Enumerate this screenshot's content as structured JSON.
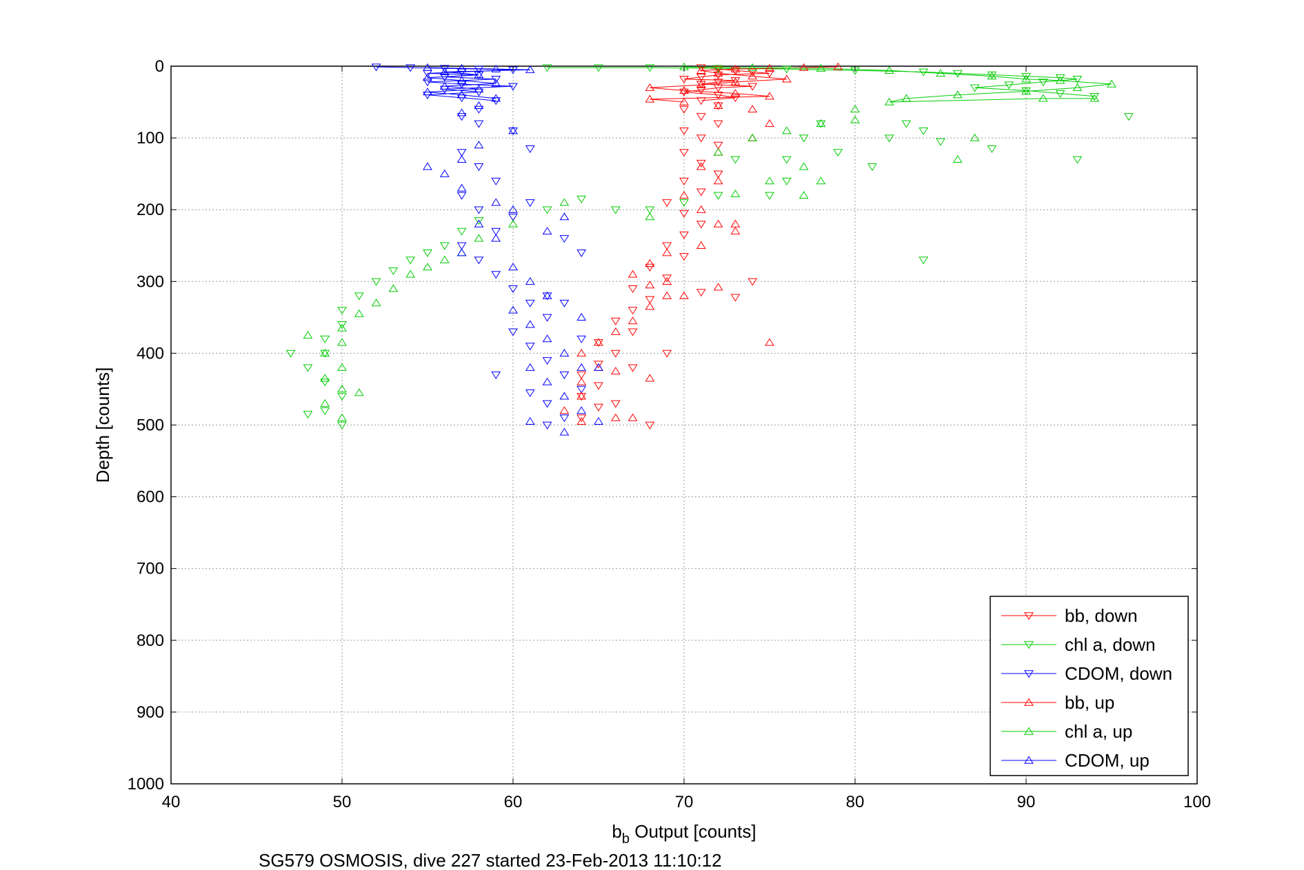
{
  "chart_data": {
    "type": "scatter",
    "xlabel_main": "b",
    "xlabel_sub": "b",
    "xlabel_rest": " Output [counts]",
    "ylabel": "Depth [counts]",
    "caption": "SG579 OSMOSIS, dive 227 started 23-Feb-2013 11:10:12",
    "xlim": [
      40,
      100
    ],
    "ylim": [
      0,
      1000
    ],
    "y_reversed": true,
    "grid": true,
    "legend_position": "bottom-right",
    "x_ticks": [
      "40",
      "50",
      "60",
      "70",
      "80",
      "90",
      "100"
    ],
    "y_ticks": [
      "0",
      "100",
      "200",
      "300",
      "400",
      "500",
      "600",
      "700",
      "800",
      "900",
      "1000"
    ],
    "series": [
      {
        "name": "bb, down",
        "color": "#ff0000",
        "marker": "triangle-down",
        "points": [
          [
            71,
            2
          ],
          [
            72,
            4
          ],
          [
            73,
            6
          ],
          [
            74,
            8
          ],
          [
            75,
            10
          ],
          [
            72,
            12
          ],
          [
            71,
            15
          ],
          [
            70,
            18
          ],
          [
            73,
            20
          ],
          [
            72,
            22
          ],
          [
            71,
            25
          ],
          [
            74,
            28
          ],
          [
            72,
            30
          ],
          [
            71,
            33
          ],
          [
            70,
            36
          ],
          [
            72,
            40
          ],
          [
            73,
            44
          ],
          [
            71,
            48
          ],
          [
            72,
            55
          ],
          [
            70,
            60
          ],
          [
            71,
            70
          ],
          [
            72,
            80
          ],
          [
            70,
            90
          ],
          [
            71,
            100
          ],
          [
            72,
            110
          ],
          [
            70,
            120
          ],
          [
            71,
            135
          ],
          [
            72,
            150
          ],
          [
            70,
            160
          ],
          [
            71,
            175
          ],
          [
            69,
            190
          ],
          [
            70,
            205
          ],
          [
            71,
            220
          ],
          [
            70,
            235
          ],
          [
            69,
            250
          ],
          [
            70,
            265
          ],
          [
            68,
            280
          ],
          [
            69,
            295
          ],
          [
            67,
            310
          ],
          [
            68,
            325
          ],
          [
            67,
            340
          ],
          [
            66,
            355
          ],
          [
            67,
            370
          ],
          [
            65,
            385
          ],
          [
            66,
            400
          ],
          [
            65,
            415
          ],
          [
            64,
            430
          ],
          [
            65,
            445
          ],
          [
            64,
            460
          ],
          [
            65,
            475
          ],
          [
            64,
            490
          ],
          [
            68,
            500
          ],
          [
            71,
            315
          ],
          [
            73,
            322
          ],
          [
            74,
            300
          ],
          [
            69,
            400
          ],
          [
            67,
            420
          ],
          [
            66,
            470
          ]
        ]
      },
      {
        "name": "chl a, down",
        "color": "#00cc00",
        "marker": "triangle-down",
        "points": [
          [
            62,
            2
          ],
          [
            65,
            2
          ],
          [
            68,
            2
          ],
          [
            72,
            3
          ],
          [
            76,
            4
          ],
          [
            80,
            6
          ],
          [
            84,
            8
          ],
          [
            86,
            10
          ],
          [
            88,
            12
          ],
          [
            90,
            14
          ],
          [
            92,
            16
          ],
          [
            93,
            18
          ],
          [
            91,
            22
          ],
          [
            89,
            26
          ],
          [
            87,
            30
          ],
          [
            90,
            34
          ],
          [
            92,
            38
          ],
          [
            94,
            42
          ],
          [
            96,
            70
          ],
          [
            93,
            130
          ],
          [
            88,
            115
          ],
          [
            85,
            105
          ],
          [
            84,
            90
          ],
          [
            83,
            80
          ],
          [
            82,
            100
          ],
          [
            81,
            140
          ],
          [
            79,
            120
          ],
          [
            78,
            80
          ],
          [
            77,
            100
          ],
          [
            76,
            130
          ],
          [
            76,
            160
          ],
          [
            75,
            180
          ],
          [
            72,
            180
          ],
          [
            70,
            190
          ],
          [
            68,
            200
          ],
          [
            66,
            200
          ],
          [
            64,
            185
          ],
          [
            62,
            200
          ],
          [
            58,
            215
          ],
          [
            57,
            230
          ],
          [
            56,
            250
          ],
          [
            55,
            260
          ],
          [
            54,
            270
          ],
          [
            53,
            285
          ],
          [
            52,
            300
          ],
          [
            51,
            320
          ],
          [
            50,
            340
          ],
          [
            50,
            360
          ],
          [
            49,
            380
          ],
          [
            49,
            400
          ],
          [
            48,
            420
          ],
          [
            49,
            440
          ],
          [
            50,
            460
          ],
          [
            49,
            480
          ],
          [
            48,
            485
          ],
          [
            47,
            400
          ],
          [
            50,
            500
          ],
          [
            84,
            270
          ],
          [
            73,
            130
          ]
        ]
      },
      {
        "name": "CDOM, down",
        "color": "#0000ff",
        "marker": "triangle-down",
        "points": [
          [
            52,
            1
          ],
          [
            54,
            2
          ],
          [
            56,
            3
          ],
          [
            58,
            4
          ],
          [
            60,
            5
          ],
          [
            57,
            8
          ],
          [
            55,
            10
          ],
          [
            58,
            12
          ],
          [
            56,
            15
          ],
          [
            59,
            18
          ],
          [
            55,
            22
          ],
          [
            57,
            25
          ],
          [
            60,
            28
          ],
          [
            56,
            32
          ],
          [
            58,
            36
          ],
          [
            55,
            40
          ],
          [
            57,
            44
          ],
          [
            59,
            48
          ],
          [
            58,
            60
          ],
          [
            57,
            70
          ],
          [
            58,
            80
          ],
          [
            60,
            90
          ],
          [
            61,
            115
          ],
          [
            57,
            120
          ],
          [
            58,
            140
          ],
          [
            59,
            160
          ],
          [
            57,
            180
          ],
          [
            58,
            200
          ],
          [
            60,
            210
          ],
          [
            59,
            230
          ],
          [
            57,
            250
          ],
          [
            58,
            270
          ],
          [
            59,
            290
          ],
          [
            60,
            310
          ],
          [
            61,
            330
          ],
          [
            62,
            350
          ],
          [
            60,
            370
          ],
          [
            61,
            390
          ],
          [
            62,
            410
          ],
          [
            63,
            430
          ],
          [
            64,
            450
          ],
          [
            62,
            470
          ],
          [
            63,
            490
          ],
          [
            62,
            500
          ],
          [
            61,
            190
          ],
          [
            63,
            240
          ],
          [
            64,
            260
          ],
          [
            62,
            320
          ],
          [
            59,
            430
          ],
          [
            61,
            455
          ],
          [
            63,
            330
          ],
          [
            64,
            380
          ]
        ]
      },
      {
        "name": "bb, up",
        "color": "#ff0000",
        "marker": "triangle-up",
        "points": [
          [
            79,
            1
          ],
          [
            77,
            2
          ],
          [
            75,
            3
          ],
          [
            73,
            4
          ],
          [
            71,
            6
          ],
          [
            72,
            10
          ],
          [
            74,
            14
          ],
          [
            76,
            18
          ],
          [
            73,
            22
          ],
          [
            71,
            26
          ],
          [
            68,
            30
          ],
          [
            70,
            34
          ],
          [
            73,
            38
          ],
          [
            75,
            42
          ],
          [
            68,
            46
          ],
          [
            70,
            50
          ],
          [
            72,
            55
          ],
          [
            74,
            60
          ],
          [
            75,
            80
          ],
          [
            74,
            100
          ],
          [
            72,
            120
          ],
          [
            71,
            140
          ],
          [
            72,
            160
          ],
          [
            70,
            180
          ],
          [
            71,
            200
          ],
          [
            72,
            220
          ],
          [
            73,
            230
          ],
          [
            71,
            250
          ],
          [
            69,
            260
          ],
          [
            68,
            275
          ],
          [
            67,
            290
          ],
          [
            68,
            305
          ],
          [
            69,
            320
          ],
          [
            68,
            335
          ],
          [
            67,
            355
          ],
          [
            66,
            370
          ],
          [
            65,
            385
          ],
          [
            64,
            400
          ],
          [
            65,
            420
          ],
          [
            64,
            440
          ],
          [
            64,
            460
          ],
          [
            63,
            480
          ],
          [
            64,
            495
          ],
          [
            66,
            490
          ],
          [
            67,
            490
          ],
          [
            72,
            308
          ],
          [
            73,
            220
          ],
          [
            75,
            385
          ],
          [
            66,
            425
          ],
          [
            68,
            435
          ],
          [
            69,
            300
          ],
          [
            70,
            320
          ]
        ]
      },
      {
        "name": "chl a, up",
        "color": "#00cc00",
        "marker": "triangle-up",
        "points": [
          [
            70,
            1
          ],
          [
            74,
            2
          ],
          [
            78,
            3
          ],
          [
            82,
            6
          ],
          [
            85,
            10
          ],
          [
            88,
            14
          ],
          [
            90,
            18
          ],
          [
            92,
            20
          ],
          [
            95,
            25
          ],
          [
            93,
            30
          ],
          [
            90,
            35
          ],
          [
            86,
            40
          ],
          [
            83,
            45
          ],
          [
            82,
            50
          ],
          [
            80,
            60
          ],
          [
            80,
            75
          ],
          [
            78,
            80
          ],
          [
            76,
            90
          ],
          [
            74,
            100
          ],
          [
            72,
            120
          ],
          [
            77,
            140
          ],
          [
            78,
            160
          ],
          [
            77,
            180
          ],
          [
            75,
            160
          ],
          [
            73,
            178
          ],
          [
            68,
            210
          ],
          [
            63,
            190
          ],
          [
            60,
            220
          ],
          [
            58,
            240
          ],
          [
            57,
            260
          ],
          [
            56,
            270
          ],
          [
            55,
            280
          ],
          [
            54,
            290
          ],
          [
            53,
            310
          ],
          [
            52,
            330
          ],
          [
            51,
            345
          ],
          [
            50,
            365
          ],
          [
            50,
            385
          ],
          [
            49,
            400
          ],
          [
            50,
            420
          ],
          [
            49,
            435
          ],
          [
            50,
            450
          ],
          [
            49,
            470
          ],
          [
            50,
            490
          ],
          [
            48,
            375
          ],
          [
            51,
            455
          ],
          [
            86,
            130
          ],
          [
            87,
            100
          ],
          [
            91,
            45
          ],
          [
            94,
            45
          ]
        ]
      },
      {
        "name": "CDOM, up",
        "color": "#0000ff",
        "marker": "triangle-up",
        "points": [
          [
            55,
            2
          ],
          [
            57,
            3
          ],
          [
            59,
            4
          ],
          [
            61,
            5
          ],
          [
            56,
            8
          ],
          [
            58,
            12
          ],
          [
            55,
            16
          ],
          [
            57,
            20
          ],
          [
            59,
            24
          ],
          [
            56,
            28
          ],
          [
            58,
            32
          ],
          [
            55,
            36
          ],
          [
            57,
            40
          ],
          [
            59,
            45
          ],
          [
            58,
            55
          ],
          [
            57,
            65
          ],
          [
            60,
            90
          ],
          [
            58,
            110
          ],
          [
            57,
            130
          ],
          [
            56,
            150
          ],
          [
            57,
            170
          ],
          [
            59,
            190
          ],
          [
            60,
            200
          ],
          [
            58,
            220
          ],
          [
            59,
            240
          ],
          [
            57,
            260
          ],
          [
            60,
            280
          ],
          [
            61,
            300
          ],
          [
            62,
            320
          ],
          [
            60,
            340
          ],
          [
            61,
            360
          ],
          [
            62,
            380
          ],
          [
            63,
            400
          ],
          [
            64,
            420
          ],
          [
            62,
            440
          ],
          [
            63,
            460
          ],
          [
            64,
            480
          ],
          [
            61,
            495
          ],
          [
            65,
            495
          ],
          [
            55,
            140
          ],
          [
            63,
            210
          ],
          [
            62,
            230
          ],
          [
            64,
            350
          ],
          [
            61,
            420
          ],
          [
            65,
            420
          ],
          [
            63,
            510
          ]
        ]
      }
    ],
    "connected_segments_note": "horizontal line segments near surface connect successive samples"
  }
}
